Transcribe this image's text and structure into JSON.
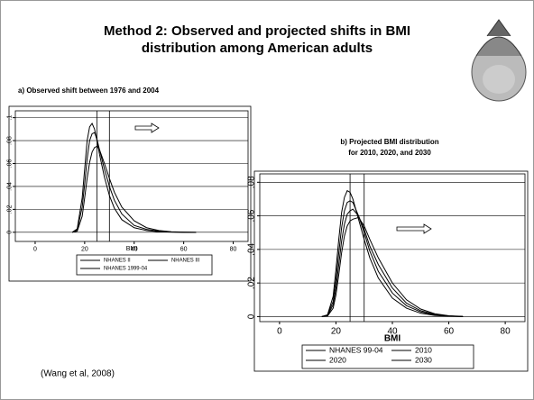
{
  "slide": {
    "title": [
      "Method 2: Observed and projected shifts in BMI",
      "distribution among American adults"
    ],
    "citation": "(Wang et al, 2008)"
  },
  "chart_data": [
    {
      "type": "line",
      "title": [
        "a) Observed shift between 1976 and 2004"
      ],
      "x_label": "BMI",
      "x": [
        15,
        17,
        19,
        20,
        21,
        22,
        23,
        24,
        25,
        26,
        28,
        30,
        32,
        35,
        40,
        45,
        50,
        55,
        60,
        65
      ],
      "series": [
        {
          "name": "NHANES II",
          "color": "#000000",
          "values": [
            0,
            0.003,
            0.03,
            0.055,
            0.08,
            0.092,
            0.095,
            0.09,
            0.08,
            0.068,
            0.048,
            0.032,
            0.021,
            0.011,
            0.004,
            0.0015,
            0.0005,
            0.0002,
            0,
            0
          ]
        },
        {
          "name": "NHANES III",
          "color": "#000000",
          "values": [
            0,
            0.002,
            0.022,
            0.042,
            0.064,
            0.08,
            0.086,
            0.087,
            0.081,
            0.072,
            0.055,
            0.04,
            0.028,
            0.016,
            0.006,
            0.0025,
            0.001,
            0.0003,
            0.0001,
            0
          ]
        },
        {
          "name": "NHANES 1999-04",
          "color": "#000000",
          "values": [
            0,
            0.001,
            0.014,
            0.03,
            0.047,
            0.061,
            0.07,
            0.074,
            0.075,
            0.072,
            0.06,
            0.047,
            0.035,
            0.022,
            0.01,
            0.004,
            0.0015,
            0.0005,
            0.0002,
            0
          ]
        }
      ],
      "xlim": [
        -8,
        86
      ],
      "xticks": [
        0,
        20,
        40,
        60,
        80
      ],
      "ylim": [
        -0.008,
        0.106
      ],
      "yticks": [
        0,
        {
          "value": 0.02,
          "label": ".02"
        },
        {
          "value": 0.04,
          "label": ".04"
        },
        {
          "value": 0.06,
          "label": ".06"
        },
        {
          "value": 0.08,
          "label": ".08"
        },
        {
          "value": 0.1,
          "label": ".1"
        }
      ],
      "vlines": [
        25,
        30
      ],
      "grid": true
    },
    {
      "type": "line",
      "title": [
        "b) Projected BMI distribution",
        "for 2010, 2020, and 2030"
      ],
      "x_label": "BMI",
      "x": [
        15,
        17,
        19,
        20,
        21,
        22,
        23,
        24,
        25,
        26,
        28,
        30,
        32,
        35,
        40,
        45,
        50,
        55,
        60,
        65
      ],
      "series": [
        {
          "name": "NHANES 99-04",
          "color": "#000000",
          "values": [
            0,
            0.001,
            0.012,
            0.028,
            0.046,
            0.062,
            0.071,
            0.075,
            0.074,
            0.07,
            0.058,
            0.046,
            0.035,
            0.023,
            0.011,
            0.005,
            0.002,
            0.0007,
            0.0002,
            0
          ]
        },
        {
          "name": "2010",
          "color": "#000000",
          "values": [
            0,
            0.001,
            0.009,
            0.022,
            0.038,
            0.053,
            0.063,
            0.068,
            0.069,
            0.068,
            0.06,
            0.05,
            0.039,
            0.027,
            0.014,
            0.0065,
            0.0028,
            0.001,
            0.0003,
            0
          ]
        },
        {
          "name": "2020",
          "color": "#000000",
          "values": [
            0,
            0.0005,
            0.007,
            0.017,
            0.031,
            0.045,
            0.055,
            0.061,
            0.063,
            0.064,
            0.06,
            0.052,
            0.042,
            0.031,
            0.017,
            0.008,
            0.0035,
            0.0013,
            0.0004,
            0
          ]
        },
        {
          "name": "2030",
          "color": "#000000",
          "values": [
            0,
            0.0003,
            0.005,
            0.013,
            0.025,
            0.038,
            0.048,
            0.054,
            0.057,
            0.058,
            0.059,
            0.054,
            0.046,
            0.035,
            0.02,
            0.01,
            0.0045,
            0.0017,
            0.0005,
            0.0001
          ]
        }
      ],
      "xlim": [
        -7,
        87
      ],
      "xticks": [
        0,
        20,
        40,
        60,
        80
      ],
      "ylim": [
        -0.003,
        0.085
      ],
      "yticks": [
        0,
        {
          "value": 0.02,
          "label": ".02"
        },
        {
          "value": 0.04,
          "label": ".04"
        },
        {
          "value": 0.06,
          "label": ".06"
        },
        {
          "value": 0.08,
          "label": ".08"
        }
      ],
      "vlines": [
        25,
        30
      ],
      "grid": true
    }
  ]
}
